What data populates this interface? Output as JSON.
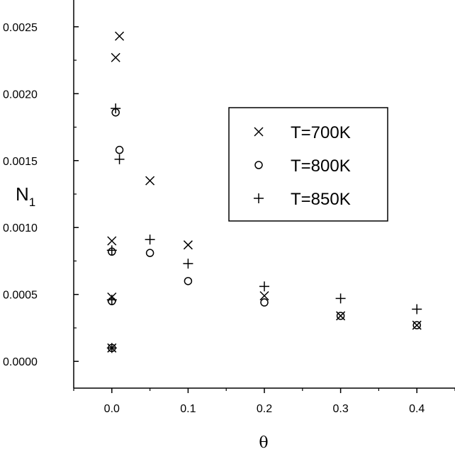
{
  "chart_data": {
    "type": "scatter",
    "title": "",
    "xlabel": "θ",
    "ylabel": {
      "main": "N",
      "sub": "1"
    },
    "xlim": [
      -0.05,
      0.45
    ],
    "ylim": [
      -0.0002,
      0.0027
    ],
    "xticks": [
      {
        "value": 0.0,
        "label": "0.0"
      },
      {
        "value": 0.1,
        "label": "0.1"
      },
      {
        "value": 0.2,
        "label": "0.2"
      },
      {
        "value": 0.3,
        "label": "0.3"
      },
      {
        "value": 0.4,
        "label": "0.4"
      }
    ],
    "yticks": [
      {
        "value": 0.0,
        "label": "0.0000"
      },
      {
        "value": 0.0005,
        "label": "0.0005"
      },
      {
        "value": 0.001,
        "label": "0.0010"
      },
      {
        "value": 0.0015,
        "label": "0.0015"
      },
      {
        "value": 0.002,
        "label": "0.0020"
      },
      {
        "value": 0.0025,
        "label": "0.0025"
      }
    ],
    "grid": false,
    "legend": {
      "position": "center-right",
      "framed": true
    },
    "series": [
      {
        "name": "T=700K",
        "marker": "x",
        "points": [
          {
            "x": 0.0,
            "y": 0.0001
          },
          {
            "x": 0.0,
            "y": 0.00048
          },
          {
            "x": 0.0,
            "y": 0.0009
          },
          {
            "x": 0.005,
            "y": 0.00227
          },
          {
            "x": 0.01,
            "y": 0.00243
          },
          {
            "x": 0.05,
            "y": 0.00135
          },
          {
            "x": 0.1,
            "y": 0.00087
          },
          {
            "x": 0.2,
            "y": 0.00049
          },
          {
            "x": 0.3,
            "y": 0.00034
          },
          {
            "x": 0.4,
            "y": 0.00027
          }
        ]
      },
      {
        "name": "T=800K",
        "marker": "circle",
        "points": [
          {
            "x": 0.0,
            "y": 0.0001
          },
          {
            "x": 0.0,
            "y": 0.00045
          },
          {
            "x": 0.0,
            "y": 0.00082
          },
          {
            "x": 0.005,
            "y": 0.00186
          },
          {
            "x": 0.01,
            "y": 0.00158
          },
          {
            "x": 0.05,
            "y": 0.00081
          },
          {
            "x": 0.1,
            "y": 0.0006
          },
          {
            "x": 0.2,
            "y": 0.00044
          },
          {
            "x": 0.3,
            "y": 0.00034
          },
          {
            "x": 0.4,
            "y": 0.00027
          }
        ]
      },
      {
        "name": "T=850K",
        "marker": "plus",
        "points": [
          {
            "x": 0.0,
            "y": 0.0001
          },
          {
            "x": 0.0,
            "y": 0.00046
          },
          {
            "x": 0.0,
            "y": 0.00083
          },
          {
            "x": 0.005,
            "y": 0.00189
          },
          {
            "x": 0.01,
            "y": 0.00151
          },
          {
            "x": 0.05,
            "y": 0.00091
          },
          {
            "x": 0.1,
            "y": 0.00073
          },
          {
            "x": 0.2,
            "y": 0.00056
          },
          {
            "x": 0.3,
            "y": 0.00047
          },
          {
            "x": 0.4,
            "y": 0.00039
          }
        ]
      }
    ]
  }
}
